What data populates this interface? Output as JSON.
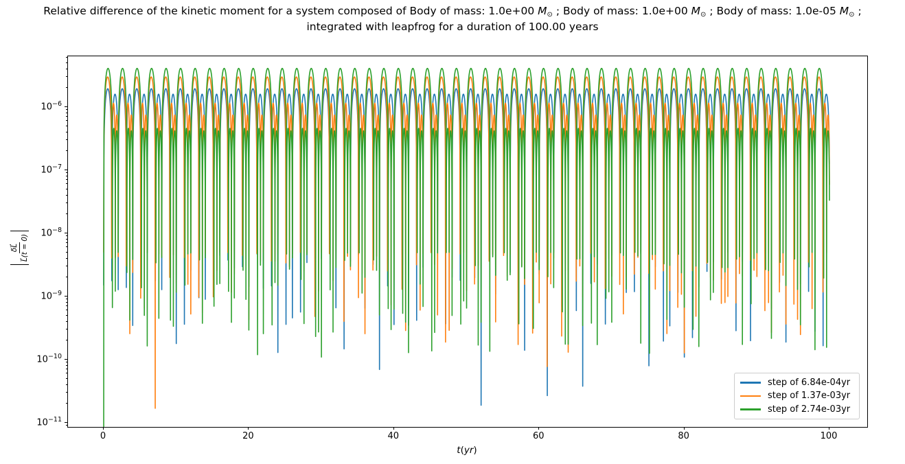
{
  "chart_data": {
    "type": "line",
    "title_line1_segments": [
      {
        "t": "Relative difference of the kinetic moment for a system composed of Body of mass: 1.0e+00 "
      },
      {
        "v": "M"
      },
      {
        "s": "⊙"
      },
      {
        "t": " ; Body of mass: 1.0e+00 "
      },
      {
        "v": "M"
      },
      {
        "s": "⊙"
      },
      {
        "t": " ; Body of mass: 1.0e-05 "
      },
      {
        "v": "M"
      },
      {
        "s": "⊙"
      },
      {
        "t": " ;"
      }
    ],
    "title_line2": "integrated with leapfrog for a duration of 100.00 years",
    "xlabel_parts": [
      "t",
      "(",
      "yr",
      ")"
    ],
    "ylabel_numerator": "δL⃗",
    "ylabel_denominator": "L⃗(t = 0)",
    "x_ticks": [
      0,
      20,
      40,
      60,
      80,
      100
    ],
    "y_tick_exponents": [
      -6,
      -7,
      -8,
      -9,
      -10,
      -11
    ],
    "x_range": [
      -4.92,
      105.2
    ],
    "y_log_range": [
      -11.065,
      -5.196
    ],
    "x_axis_unit": "yr",
    "duration_years": 100,
    "period_years": 2.0,
    "grid": false,
    "legend_position": "lower right",
    "dip_floor_log_range": [
      -9.9,
      -8.3
    ],
    "series": [
      {
        "name": "step of 6.84e-04yr",
        "color": "#1f77b4",
        "arch_fracs": [
          0.56,
          0.44
        ],
        "arch_amps": [
          1.95e-06,
          1.6e-06
        ],
        "seed": 11,
        "deep_dips": [
          [
            0.0,
            1.5e-09
          ],
          [
            10.0,
            1.8e-10
          ],
          [
            24.0,
            1.3e-10
          ],
          [
            38.0,
            7e-11
          ],
          [
            52.0,
            1.9e-11
          ],
          [
            61.12,
            2.7e-11
          ],
          [
            66.0,
            3.8e-11
          ],
          [
            75.12,
            8e-11
          ],
          [
            80.0,
            1.1e-10
          ],
          [
            89.12,
            2e-10
          ],
          [
            94.0,
            1.9e-10
          ]
        ]
      },
      {
        "name": "step of 1.37e-03yr",
        "color": "#ff7f0e",
        "arch_fracs": [
          0.55,
          0.25,
          0.2
        ],
        "arch_amps": [
          3e-06,
          1.15e-06,
          7.5e-07
        ],
        "seed": 22,
        "deep_dips": [
          [
            0.0,
            5e-09
          ],
          [
            7.1,
            1.7e-11
          ],
          [
            47.1,
            1.9e-10
          ],
          [
            61.1,
            7.8e-11
          ],
          [
            92.0,
            2.7e-10
          ]
        ]
      },
      {
        "name": "step of 2.74e-03yr",
        "color": "#2ca02c",
        "arch_fracs": [
          0.6,
          0.2,
          0.2
        ],
        "arch_amps": [
          4.1e-06,
          4.6e-07,
          4.2e-07
        ],
        "seed": 33,
        "deep_dips": [
          [
            0.0,
            4e-12
          ],
          [
            21.2,
            1.2e-10
          ],
          [
            30.0,
            1.1e-10
          ],
          [
            45.6,
            2.7e-10
          ]
        ]
      }
    ]
  }
}
